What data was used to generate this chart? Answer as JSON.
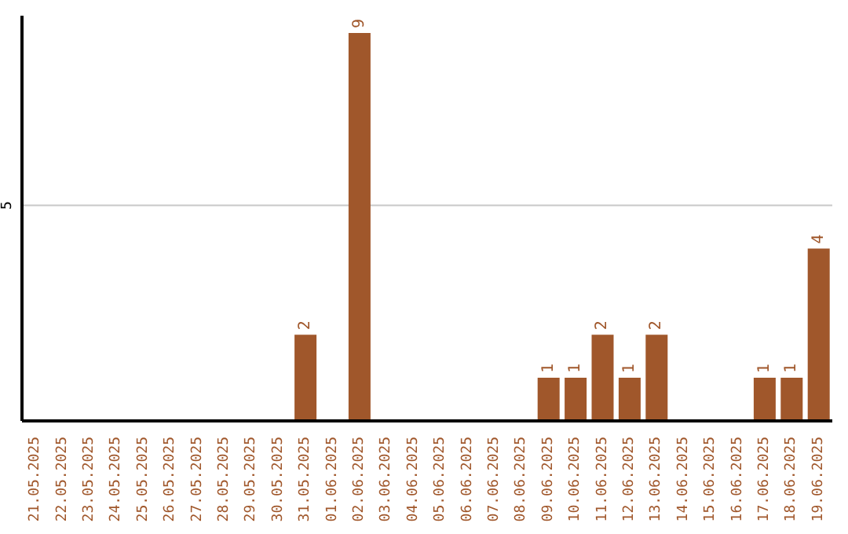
{
  "chart_data": {
    "type": "bar",
    "categories": [
      "21.05.2025",
      "22.05.2025",
      "23.05.2025",
      "24.05.2025",
      "25.05.2025",
      "26.05.2025",
      "27.05.2025",
      "28.05.2025",
      "29.05.2025",
      "30.05.2025",
      "31.05.2025",
      "01.06.2025",
      "02.06.2025",
      "03.06.2025",
      "04.06.2025",
      "05.06.2025",
      "06.06.2025",
      "07.06.2025",
      "08.06.2025",
      "09.06.2025",
      "10.06.2025",
      "11.06.2025",
      "12.06.2025",
      "13.06.2025",
      "14.06.2025",
      "15.06.2025",
      "16.06.2025",
      "17.06.2025",
      "18.06.2025",
      "19.06.2025"
    ],
    "values": [
      0,
      0,
      0,
      0,
      0,
      0,
      0,
      0,
      0,
      0,
      2,
      0,
      9,
      0,
      0,
      0,
      0,
      0,
      0,
      1,
      1,
      2,
      1,
      2,
      0,
      0,
      0,
      1,
      1,
      4
    ],
    "value_labels": [
      null,
      null,
      null,
      null,
      null,
      null,
      null,
      null,
      null,
      null,
      "2",
      null,
      "9",
      null,
      null,
      null,
      null,
      null,
      null,
      "1",
      "1",
      "2",
      "1",
      "2",
      null,
      null,
      null,
      "1",
      "1",
      "4"
    ],
    "color": "#a0572b",
    "ylim": [
      0,
      9.4
    ],
    "yticks": [
      5
    ],
    "grid": "y"
  }
}
